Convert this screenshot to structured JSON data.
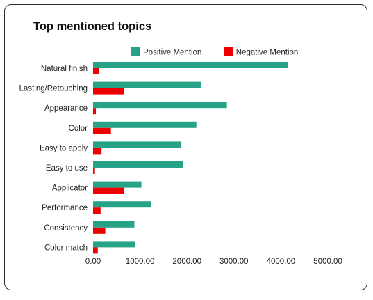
{
  "chart_data": {
    "type": "bar",
    "orientation": "horizontal",
    "title": "Top mentioned topics",
    "categories": [
      "Natural finish",
      "Lasting/Retouching",
      "Appearance",
      "Color",
      "Easy to apply",
      "Easy to use",
      "Applicator",
      "Performance",
      "Consistency",
      "Color match"
    ],
    "series": [
      {
        "name": "Positive Mention",
        "color": "#26a387",
        "values": [
          4150,
          2300,
          2850,
          2200,
          1880,
          1920,
          1030,
          1230,
          880,
          900
        ]
      },
      {
        "name": "Negative Mention",
        "color": "#ee0000",
        "values": [
          120,
          660,
          60,
          380,
          180,
          40,
          660,
          160,
          260,
          100
        ]
      }
    ],
    "x_ticks": [
      "0.00",
      "1000.00",
      "2000.00",
      "3000.00",
      "4000.00",
      "5000.00"
    ],
    "xlim": [
      0,
      5000
    ],
    "legend_position": "top-right",
    "grid": false
  }
}
